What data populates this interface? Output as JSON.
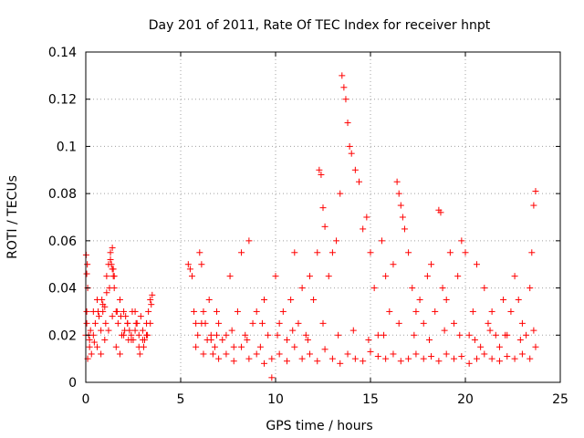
{
  "chart_data": {
    "type": "scatter",
    "title": "Day 201 of 2011, Rate Of TEC Index for receiver hnpt",
    "xlabel": "GPS time / hours",
    "ylabel": "ROTI / TECUs",
    "xlim": [
      0,
      25
    ],
    "ylim": [
      0,
      0.14
    ],
    "xticks": [
      0,
      5,
      10,
      15,
      20,
      25
    ],
    "yticks": [
      0,
      0.02,
      0.04,
      0.06,
      0.08,
      0.1,
      0.12,
      0.14
    ],
    "xtick_labels": [
      "0",
      "5",
      "10",
      "15",
      "20",
      "25"
    ],
    "ytick_labels": [
      "0",
      "0.02",
      "0.04",
      "0.06",
      "0.08",
      "0.1",
      "0.12",
      "0.14"
    ],
    "grid": true,
    "marker": "plus",
    "color": "#ff0000",
    "series": [
      {
        "x": [
          0.02,
          0.05,
          0.1,
          0.15,
          0.2,
          0.3,
          0.4,
          0.5,
          0.6,
          0.7,
          0.8,
          0.9,
          1.0,
          1.1,
          1.2,
          1.3,
          1.4,
          1.5,
          1.6,
          1.7,
          1.8,
          1.9,
          2.0,
          2.1,
          2.2,
          2.3,
          2.4,
          2.5,
          2.6,
          2.7,
          2.8,
          2.9,
          3.0,
          3.1,
          3.2,
          3.3,
          3.4,
          3.5,
          0.1,
          0.2,
          0.4,
          0.6,
          0.8,
          1.0,
          1.2,
          1.4,
          1.6,
          1.8,
          2.0,
          2.2,
          2.4,
          2.6,
          2.8,
          3.0,
          3.2,
          3.4,
          0.05,
          0.25,
          0.45,
          0.65,
          0.85,
          1.05,
          1.25,
          1.45,
          1.65,
          1.85,
          2.05,
          2.25,
          2.45,
          2.65,
          2.85,
          3.05,
          3.25,
          3.45,
          1.3,
          1.35,
          1.4,
          1.45,
          1.5,
          0.9,
          1.1,
          0.0,
          0.05,
          0.08
        ],
        "y": [
          0.054,
          0.046,
          0.04,
          0.02,
          0.015,
          0.012,
          0.03,
          0.025,
          0.035,
          0.028,
          0.022,
          0.03,
          0.032,
          0.045,
          0.05,
          0.055,
          0.048,
          0.04,
          0.03,
          0.025,
          0.035,
          0.02,
          0.03,
          0.028,
          0.025,
          0.022,
          0.02,
          0.018,
          0.03,
          0.025,
          0.02,
          0.028,
          0.022,
          0.018,
          0.025,
          0.03,
          0.035,
          0.037,
          0.01,
          0.018,
          0.02,
          0.015,
          0.012,
          0.018,
          0.022,
          0.028,
          0.015,
          0.012,
          0.02,
          0.025,
          0.018,
          0.022,
          0.015,
          0.018,
          0.02,
          0.025,
          0.03,
          0.022,
          0.017,
          0.03,
          0.035,
          0.025,
          0.04,
          0.045,
          0.03,
          0.028,
          0.022,
          0.018,
          0.03,
          0.025,
          0.012,
          0.015,
          0.02,
          0.033,
          0.052,
          0.05,
          0.057,
          0.048,
          0.045,
          0.033,
          0.038,
          0.02,
          0.025,
          0.05
        ]
      },
      {
        "x": [
          5.4,
          5.5,
          5.6,
          5.7,
          5.8,
          5.9,
          6.0,
          6.1,
          6.2,
          6.3,
          6.4,
          6.5,
          6.6,
          6.7,
          6.8,
          6.9,
          7.0,
          7.2,
          7.4,
          7.6,
          7.8,
          8.0,
          8.2,
          8.4,
          8.6,
          8.8,
          9.0,
          9.2,
          9.4,
          9.6,
          9.8,
          10.0,
          10.2,
          10.4,
          10.6,
          10.8,
          11.0,
          11.2,
          11.4,
          11.6,
          11.8,
          12.0,
          12.2,
          12.3,
          12.4,
          12.5,
          12.6,
          12.8,
          13.0,
          13.2,
          13.4,
          13.5,
          13.6,
          13.7,
          13.8,
          13.9,
          14.0,
          14.2,
          14.4,
          14.6,
          14.8,
          15.0,
          15.2,
          15.4,
          15.6,
          15.8,
          16.0,
          16.2,
          16.4,
          16.5,
          16.6,
          16.7,
          16.8,
          17.0,
          17.2,
          17.4,
          17.6,
          17.8,
          18.0,
          18.2,
          18.4,
          18.6,
          18.7,
          18.8,
          19.0,
          19.2,
          19.4,
          19.6,
          19.8,
          20.0,
          20.2,
          20.4,
          20.6,
          20.8,
          21.0,
          21.2,
          21.4,
          21.6,
          21.8,
          22.0,
          22.2,
          22.4,
          22.6,
          22.8,
          23.0,
          23.2,
          23.4,
          23.5,
          23.6,
          23.7
        ],
        "y": [
          0.05,
          0.048,
          0.045,
          0.03,
          0.025,
          0.02,
          0.055,
          0.05,
          0.03,
          0.025,
          0.018,
          0.035,
          0.02,
          0.012,
          0.015,
          0.03,
          0.025,
          0.018,
          0.02,
          0.045,
          0.015,
          0.03,
          0.055,
          0.02,
          0.06,
          0.025,
          0.03,
          0.015,
          0.035,
          0.02,
          0.002,
          0.045,
          0.025,
          0.03,
          0.018,
          0.035,
          0.055,
          0.025,
          0.04,
          0.02,
          0.045,
          0.035,
          0.055,
          0.09,
          0.088,
          0.074,
          0.066,
          0.045,
          0.055,
          0.06,
          0.08,
          0.13,
          0.125,
          0.12,
          0.11,
          0.1,
          0.097,
          0.09,
          0.085,
          0.065,
          0.07,
          0.055,
          0.04,
          0.02,
          0.06,
          0.045,
          0.03,
          0.05,
          0.085,
          0.08,
          0.075,
          0.07,
          0.065,
          0.055,
          0.04,
          0.03,
          0.035,
          0.025,
          0.045,
          0.05,
          0.03,
          0.073,
          0.072,
          0.04,
          0.035,
          0.055,
          0.025,
          0.045,
          0.06,
          0.055,
          0.02,
          0.03,
          0.05,
          0.015,
          0.04,
          0.025,
          0.03,
          0.02,
          0.015,
          0.035,
          0.02,
          0.03,
          0.045,
          0.035,
          0.025,
          0.02,
          0.04,
          0.055,
          0.075,
          0.081
        ]
      },
      {
        "x": [
          5.8,
          6.2,
          6.6,
          7.0,
          7.4,
          7.8,
          8.2,
          8.6,
          9.0,
          9.4,
          9.8,
          10.2,
          10.6,
          11.0,
          11.4,
          11.8,
          12.2,
          12.6,
          13.0,
          13.4,
          13.8,
          14.2,
          14.6,
          15.0,
          15.4,
          15.8,
          16.2,
          16.6,
          17.0,
          17.4,
          17.8,
          18.2,
          18.6,
          19.0,
          19.4,
          19.8,
          20.2,
          20.6,
          21.0,
          21.4,
          21.8,
          22.2,
          22.6,
          23.0,
          23.4,
          23.7,
          6.1,
          6.9,
          7.7,
          8.5,
          9.3,
          10.1,
          10.9,
          11.7,
          12.5,
          13.3,
          14.1,
          14.9,
          15.7,
          16.5,
          17.3,
          18.1,
          18.9,
          19.7,
          20.5,
          21.3,
          22.1,
          22.9,
          23.6
        ],
        "y": [
          0.015,
          0.012,
          0.018,
          0.01,
          0.012,
          0.009,
          0.015,
          0.01,
          0.012,
          0.008,
          0.01,
          0.012,
          0.009,
          0.015,
          0.01,
          0.012,
          0.009,
          0.014,
          0.01,
          0.008,
          0.012,
          0.01,
          0.009,
          0.013,
          0.011,
          0.01,
          0.012,
          0.009,
          0.01,
          0.012,
          0.01,
          0.011,
          0.009,
          0.012,
          0.01,
          0.011,
          0.008,
          0.01,
          0.012,
          0.01,
          0.009,
          0.011,
          0.01,
          0.012,
          0.01,
          0.015,
          0.025,
          0.02,
          0.022,
          0.018,
          0.025,
          0.02,
          0.022,
          0.018,
          0.025,
          0.02,
          0.022,
          0.018,
          0.02,
          0.025,
          0.02,
          0.018,
          0.022,
          0.02,
          0.018,
          0.022,
          0.02,
          0.018,
          0.022
        ]
      }
    ]
  }
}
